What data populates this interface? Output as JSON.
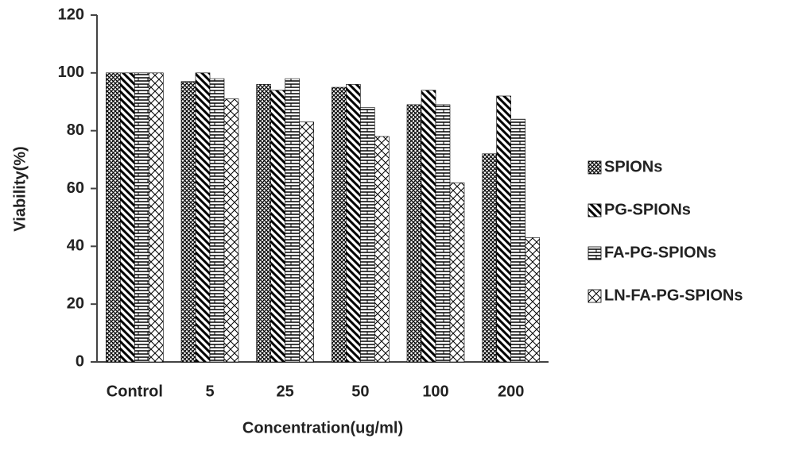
{
  "chart_data": {
    "type": "bar",
    "x_label": "Concentration(ug/ml)",
    "y_label": "Viability(%)",
    "categories": [
      "Control",
      "5",
      "25",
      "50",
      "100",
      "200"
    ],
    "series": [
      {
        "name": "SPIONs",
        "color": "#000000",
        "pattern": "diamond-crosshatch",
        "values": [
          100,
          97,
          96,
          95,
          89,
          72
        ]
      },
      {
        "name": "PG-SPIONs",
        "color": "#000000",
        "pattern": "diagonal-stripes",
        "values": [
          100,
          100,
          94,
          96,
          94,
          92
        ]
      },
      {
        "name": "FA-PG-SPIONs",
        "color": "#000000",
        "pattern": "horizontal-bricks",
        "values": [
          100,
          98,
          98,
          88,
          89,
          84
        ]
      },
      {
        "name": "LN-FA-PG-SPIONs",
        "color": "#000000",
        "pattern": "wide-crosshatch",
        "values": [
          100,
          91,
          83,
          78,
          62,
          43
        ]
      }
    ],
    "ylim": [
      0,
      120
    ],
    "yticks": [
      0,
      20,
      40,
      60,
      80,
      100,
      120
    ],
    "grid": false,
    "legend": "right"
  }
}
